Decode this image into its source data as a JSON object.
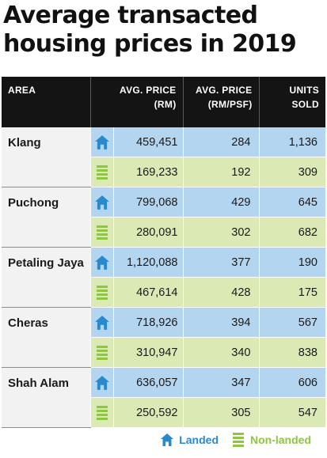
{
  "title_line1": "Average transacted",
  "title_line2": "housing prices in 2019",
  "headers": {
    "area": "AREA",
    "price_l1": "AVG. PRICE",
    "price_l2": "(RM)",
    "psf_l1": "AVG. PRICE",
    "psf_l2": "(RM/PSF)",
    "units_l1": "UNITS",
    "units_l2": "SOLD"
  },
  "legend": {
    "landed": "Landed",
    "non_landed": "Non-landed"
  },
  "colors": {
    "landed_row": "#b3d5ef",
    "non_landed_row": "#dbe9b5",
    "landed_icon": "#2a88cc",
    "non_landed_icon": "#8dc63f",
    "header_bg": "#141414"
  },
  "icons": {
    "landed": "house-icon",
    "non_landed": "building-bars-icon"
  },
  "chart_data": {
    "type": "table",
    "title": "Average transacted housing prices in 2019",
    "columns": [
      "AREA",
      "AVG. PRICE (RM)",
      "AVG. PRICE (RM/PSF)",
      "UNITS SOLD"
    ],
    "rows": [
      {
        "area": "Klang",
        "landed": {
          "price": "459,451",
          "psf": "284",
          "units": "1,136"
        },
        "non_landed": {
          "price": "169,233",
          "psf": "192",
          "units": "309"
        }
      },
      {
        "area": "Puchong",
        "landed": {
          "price": "799,068",
          "psf": "429",
          "units": "645"
        },
        "non_landed": {
          "price": "280,091",
          "psf": "302",
          "units": "682"
        }
      },
      {
        "area": "Petaling Jaya",
        "landed": {
          "price": "1,120,088",
          "psf": "377",
          "units": "190"
        },
        "non_landed": {
          "price": "467,614",
          "psf": "428",
          "units": "175"
        }
      },
      {
        "area": "Cheras",
        "landed": {
          "price": "718,926",
          "psf": "394",
          "units": "567"
        },
        "non_landed": {
          "price": "310,947",
          "psf": "340",
          "units": "838"
        }
      },
      {
        "area": "Shah Alam",
        "landed": {
          "price": "636,057",
          "psf": "347",
          "units": "606"
        },
        "non_landed": {
          "price": "250,592",
          "psf": "305",
          "units": "547"
        }
      }
    ]
  }
}
